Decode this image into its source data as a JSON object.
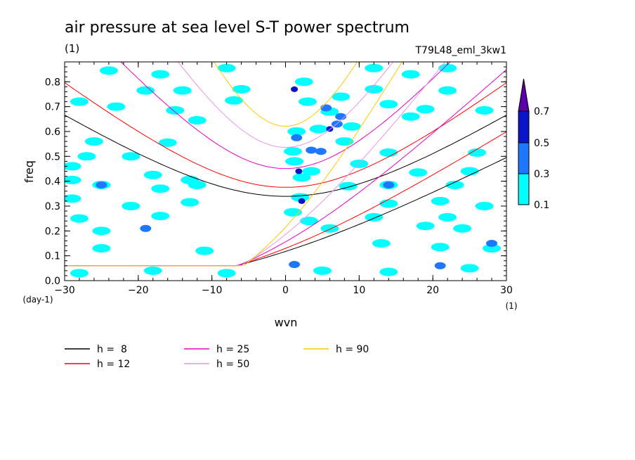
{
  "chart_data": {
    "type": "heatmap",
    "title": "air pressure at sea level S-T power spectrum",
    "subtitle_left": "(1)",
    "subtitle_right": "T79L48_eml_3kw1",
    "xlabel": "wvn",
    "ylabel": "freq",
    "x_unit": "(1)",
    "y_unit": "(day-1)",
    "xlim": [
      -30,
      30
    ],
    "ylim": [
      0,
      0.88
    ],
    "x_ticks": [
      -30,
      -20,
      -10,
      0,
      10,
      20,
      30
    ],
    "y_ticks": [
      0.0,
      0.1,
      0.2,
      0.3,
      0.4,
      0.5,
      0.6,
      0.7,
      0.8
    ],
    "y_tick_labels": [
      "0.0",
      "0.1",
      "0.2",
      "0.3",
      "0.4",
      "0.5",
      "0.6",
      "0.7",
      "0.8"
    ],
    "colorbar": {
      "levels": [
        "0.1",
        "0.3",
        "0.5",
        "0.7"
      ],
      "colors": [
        "#00ffff",
        "#1e78ff",
        "#0a14c8",
        "#5a00aa"
      ]
    },
    "blobs": [
      {
        "x": -24,
        "y": 0.845,
        "v": 1
      },
      {
        "x": -17,
        "y": 0.83,
        "v": 1
      },
      {
        "x": -8,
        "y": 0.855,
        "v": 1
      },
      {
        "x": 12,
        "y": 0.855,
        "v": 1
      },
      {
        "x": 17,
        "y": 0.83,
        "v": 1
      },
      {
        "x": 22,
        "y": 0.855,
        "v": 1
      },
      {
        "x": -19,
        "y": 0.765,
        "v": 1
      },
      {
        "x": -14,
        "y": 0.765,
        "v": 1
      },
      {
        "x": -6,
        "y": 0.77,
        "v": 1
      },
      {
        "x": 12,
        "y": 0.77,
        "v": 1
      },
      {
        "x": 22,
        "y": 0.765,
        "v": 1
      },
      {
        "x": -28,
        "y": 0.72,
        "v": 1
      },
      {
        "x": -23,
        "y": 0.7,
        "v": 1
      },
      {
        "x": -15,
        "y": 0.685,
        "v": 1
      },
      {
        "x": -7,
        "y": 0.725,
        "v": 1
      },
      {
        "x": 14,
        "y": 0.71,
        "v": 1
      },
      {
        "x": 19,
        "y": 0.69,
        "v": 1
      },
      {
        "x": 27,
        "y": 0.685,
        "v": 1
      },
      {
        "x": -12,
        "y": 0.645,
        "v": 1
      },
      {
        "x": 17,
        "y": 0.66,
        "v": 1
      },
      {
        "x": -26,
        "y": 0.56,
        "v": 1
      },
      {
        "x": -16,
        "y": 0.555,
        "v": 1
      },
      {
        "x": -27,
        "y": 0.5,
        "v": 1
      },
      {
        "x": -21,
        "y": 0.5,
        "v": 1
      },
      {
        "x": 14,
        "y": 0.515,
        "v": 1
      },
      {
        "x": 26,
        "y": 0.515,
        "v": 1
      },
      {
        "x": -29,
        "y": 0.46,
        "v": 1
      },
      {
        "x": -18,
        "y": 0.425,
        "v": 1
      },
      {
        "x": -13,
        "y": 0.405,
        "v": 1
      },
      {
        "x": 18,
        "y": 0.435,
        "v": 1
      },
      {
        "x": 25,
        "y": 0.44,
        "v": 1
      },
      {
        "x": -29,
        "y": 0.405,
        "v": 1
      },
      {
        "x": -25,
        "y": 0.385,
        "v": 1
      },
      {
        "x": -17,
        "y": 0.37,
        "v": 1
      },
      {
        "x": -12,
        "y": 0.385,
        "v": 1
      },
      {
        "x": 14,
        "y": 0.385,
        "v": 1
      },
      {
        "x": 23,
        "y": 0.385,
        "v": 1
      },
      {
        "x": -29,
        "y": 0.33,
        "v": 1
      },
      {
        "x": -21,
        "y": 0.3,
        "v": 1
      },
      {
        "x": -13,
        "y": 0.315,
        "v": 1
      },
      {
        "x": 14,
        "y": 0.31,
        "v": 1
      },
      {
        "x": 21,
        "y": 0.32,
        "v": 1
      },
      {
        "x": 27,
        "y": 0.3,
        "v": 1
      },
      {
        "x": -28,
        "y": 0.25,
        "v": 1
      },
      {
        "x": -17,
        "y": 0.26,
        "v": 1
      },
      {
        "x": 12,
        "y": 0.255,
        "v": 1
      },
      {
        "x": 22,
        "y": 0.255,
        "v": 1
      },
      {
        "x": -25,
        "y": 0.2,
        "v": 1
      },
      {
        "x": 6,
        "y": 0.21,
        "v": 1
      },
      {
        "x": 19,
        "y": 0.22,
        "v": 1
      },
      {
        "x": 24,
        "y": 0.21,
        "v": 1
      },
      {
        "x": -25,
        "y": 0.13,
        "v": 1
      },
      {
        "x": -11,
        "y": 0.12,
        "v": 1
      },
      {
        "x": 13,
        "y": 0.15,
        "v": 1
      },
      {
        "x": 21,
        "y": 0.135,
        "v": 1
      },
      {
        "x": 28,
        "y": 0.13,
        "v": 1
      },
      {
        "x": -28,
        "y": 0.03,
        "v": 1
      },
      {
        "x": -18,
        "y": 0.04,
        "v": 1
      },
      {
        "x": -8,
        "y": 0.03,
        "v": 1
      },
      {
        "x": 5,
        "y": 0.04,
        "v": 1
      },
      {
        "x": 14,
        "y": 0.035,
        "v": 1
      },
      {
        "x": 25,
        "y": 0.05,
        "v": 1
      },
      {
        "x": 28,
        "y": 0.15,
        "v": 2
      },
      {
        "x": 21,
        "y": 0.06,
        "v": 2
      },
      {
        "x": -19,
        "y": 0.21,
        "v": 2
      },
      {
        "x": -25,
        "y": 0.385,
        "v": 2
      },
      {
        "x": 14,
        "y": 0.385,
        "v": 2
      },
      {
        "x": 1.2,
        "y": 0.065,
        "v": 2
      },
      {
        "x": 1.2,
        "y": 0.48,
        "v": 1
      },
      {
        "x": 1,
        "y": 0.52,
        "v": 1
      },
      {
        "x": 2.2,
        "y": 0.415,
        "v": 1
      },
      {
        "x": 3.5,
        "y": 0.44,
        "v": 1
      },
      {
        "x": 2,
        "y": 0.335,
        "v": 1
      },
      {
        "x": 1,
        "y": 0.275,
        "v": 1
      },
      {
        "x": 3.2,
        "y": 0.24,
        "v": 1
      },
      {
        "x": 1.5,
        "y": 0.6,
        "v": 1
      },
      {
        "x": 4.5,
        "y": 0.61,
        "v": 1
      },
      {
        "x": 6,
        "y": 0.68,
        "v": 1
      },
      {
        "x": 3,
        "y": 0.72,
        "v": 1
      },
      {
        "x": 7.5,
        "y": 0.74,
        "v": 1
      },
      {
        "x": 2.5,
        "y": 0.8,
        "v": 1
      },
      {
        "x": 8,
        "y": 0.56,
        "v": 1
      },
      {
        "x": 9,
        "y": 0.62,
        "v": 1
      },
      {
        "x": 10,
        "y": 0.47,
        "v": 1
      },
      {
        "x": 8.5,
        "y": 0.38,
        "v": 1
      },
      {
        "x": 1.2,
        "y": 0.77,
        "v": 3
      },
      {
        "x": 5.5,
        "y": 0.695,
        "v": 2
      },
      {
        "x": 6,
        "y": 0.61,
        "v": 3
      },
      {
        "x": 3.5,
        "y": 0.525,
        "v": 2
      },
      {
        "x": 1.8,
        "y": 0.44,
        "v": 3
      },
      {
        "x": 2.2,
        "y": 0.32,
        "v": 3
      },
      {
        "x": 7,
        "y": 0.63,
        "v": 2
      },
      {
        "x": 4.8,
        "y": 0.52,
        "v": 2
      },
      {
        "x": 7.5,
        "y": 0.66,
        "v": 2
      },
      {
        "x": 1.5,
        "y": 0.575,
        "v": 2
      }
    ],
    "series": [
      {
        "name": "h =  8",
        "h": 8,
        "color": "#000000"
      },
      {
        "name": "h = 12",
        "h": 12,
        "color": "#ff0000"
      },
      {
        "name": "h = 25",
        "h": 25,
        "color": "#e600c8"
      },
      {
        "name": "h = 50",
        "h": 50,
        "color": "#e696e6"
      },
      {
        "name": "h = 90",
        "h": 90,
        "color": "#ffc800"
      }
    ]
  }
}
